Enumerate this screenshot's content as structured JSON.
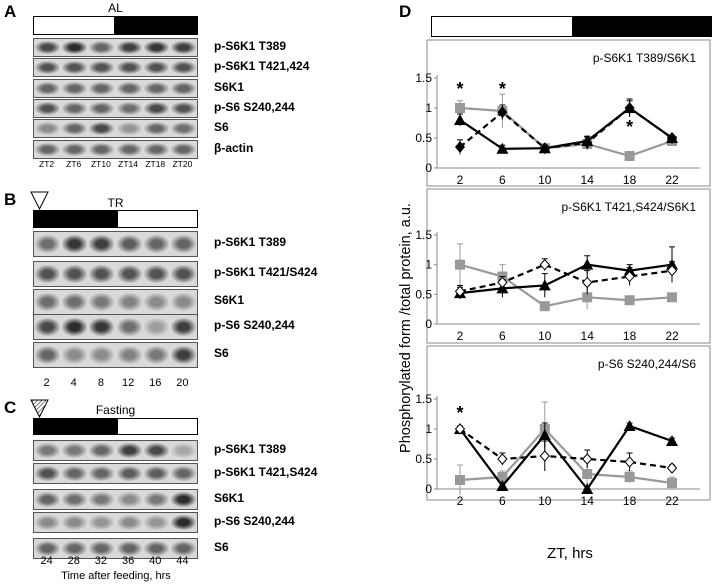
{
  "panels": {
    "A": {
      "letter": "A",
      "condition": "AL",
      "bar": {
        "segments": [
          "light",
          "dark"
        ]
      },
      "blots": [
        "p-S6K1  T389",
        "p-S6K1 T421,424",
        "S6K1",
        "p-S6 S240,244",
        "S6",
        "β-actin"
      ],
      "lane_labels": [
        "ZT2",
        "ZT6",
        "ZT10",
        "ZT14",
        "ZT18",
        "ZT20"
      ],
      "band_intensity": [
        [
          0.75,
          0.9,
          0.6,
          0.8,
          0.85,
          0.8
        ],
        [
          0.7,
          0.7,
          0.7,
          0.7,
          0.7,
          0.7
        ],
        [
          0.6,
          0.6,
          0.6,
          0.6,
          0.6,
          0.6
        ],
        [
          0.7,
          0.6,
          0.6,
          0.55,
          0.75,
          0.7
        ],
        [
          0.4,
          0.6,
          0.75,
          0.35,
          0.6,
          0.55
        ],
        [
          0.6,
          0.6,
          0.6,
          0.6,
          0.6,
          0.6
        ]
      ]
    },
    "B": {
      "letter": "B",
      "condition": "TR",
      "bar": {
        "segments": [
          "dark",
          "light"
        ]
      },
      "blots": [
        "p-S6K1  T389",
        "p-S6K1 T421/S424",
        "S6K1",
        "p-S6 S240,244",
        "S6"
      ],
      "lane_labels": [
        "2",
        "4",
        "8",
        "12",
        "16",
        "20"
      ],
      "band_intensity": [
        [
          0.55,
          0.85,
          0.8,
          0.65,
          0.6,
          0.6
        ],
        [
          0.7,
          0.7,
          0.7,
          0.7,
          0.7,
          0.7
        ],
        [
          0.55,
          0.55,
          0.5,
          0.45,
          0.4,
          0.4
        ],
        [
          0.75,
          0.9,
          0.85,
          0.55,
          0.3,
          0.8
        ],
        [
          0.6,
          0.4,
          0.4,
          0.45,
          0.5,
          0.8
        ]
      ]
    },
    "C": {
      "letter": "C",
      "condition": "Fasting",
      "bar": {
        "segments": [
          "dark",
          "light"
        ]
      },
      "blots": [
        "p-S6K1  T389",
        "p-S6K1 T421,S424",
        "S6K1",
        "p-S6 S240,244",
        "S6"
      ],
      "lane_labels": [
        "24",
        "28",
        "32",
        "36",
        "40",
        "44"
      ],
      "x_title": "Time after feeding, hrs",
      "band_intensity": [
        [
          0.5,
          0.5,
          0.6,
          0.8,
          0.75,
          0.25
        ],
        [
          0.7,
          0.6,
          0.6,
          0.65,
          0.65,
          0.6
        ],
        [
          0.6,
          0.55,
          0.5,
          0.4,
          0.5,
          0.9
        ],
        [
          0.4,
          0.4,
          0.35,
          0.4,
          0.35,
          0.9
        ],
        [
          0.6,
          0.6,
          0.6,
          0.6,
          0.6,
          0.6
        ]
      ]
    },
    "D": {
      "letter": "D",
      "y_title": "Phosphorylated form /total protein, a.u.",
      "x_title": "ZT, hrs"
    }
  },
  "chart_data": [
    {
      "type": "line",
      "title": "p-S6K1  T389/S6K1",
      "x": [
        2,
        6,
        10,
        14,
        18,
        22
      ],
      "xticks": [
        "2",
        "6",
        "10",
        "14",
        "18",
        "22"
      ],
      "ylim": [
        0,
        1.5
      ],
      "yticks": [
        "0",
        "0.5",
        "1",
        "1.5"
      ],
      "annotations": [
        {
          "text": "*",
          "x": 2,
          "y": 1.35
        },
        {
          "text": "*",
          "x": 6,
          "y": 1.35
        },
        {
          "text": "*",
          "x": 18,
          "y": 0.72
        }
      ],
      "series": [
        {
          "name": "AL",
          "marker": "diamond-filled",
          "dash": true,
          "color": "#000000",
          "values": [
            0.35,
            0.93,
            0.33,
            0.42,
            1.0,
            0.5
          ],
          "err": [
            0.12,
            0.12,
            0.05,
            0.1,
            0.12,
            0.05
          ]
        },
        {
          "name": "TR",
          "marker": "triangle-filled",
          "dash": false,
          "color": "#000000",
          "values": [
            0.8,
            0.32,
            0.33,
            0.45,
            1.0,
            0.5
          ],
          "err": [
            0.1,
            0.06,
            0.05,
            0.08,
            0.15,
            0.05
          ]
        },
        {
          "name": "Fasting",
          "marker": "square",
          "dash": false,
          "color": "#999999",
          "values": [
            1.0,
            0.95,
            0.33,
            0.4,
            0.2,
            0.45
          ],
          "err": [
            0.12,
            0.28,
            0.05,
            0.1,
            0.04,
            0.05
          ]
        }
      ]
    },
    {
      "type": "line",
      "title": "p-S6K1 T421,S424/S6K1",
      "x": [
        2,
        6,
        10,
        14,
        18,
        22
      ],
      "xticks": [
        "2",
        "6",
        "10",
        "14",
        "18",
        "22"
      ],
      "ylim": [
        0,
        1.5
      ],
      "yticks": [
        "0",
        "0.5",
        "1",
        "1.5"
      ],
      "annotations": [],
      "series": [
        {
          "name": "AL",
          "marker": "diamond-open",
          "dash": true,
          "color": "#000000",
          "values": [
            0.55,
            0.7,
            1.0,
            0.7,
            0.8,
            0.9
          ],
          "err": [
            0.1,
            0.1,
            0.1,
            0.2,
            0.15,
            0.15
          ]
        },
        {
          "name": "TR",
          "marker": "triangle-filled",
          "dash": false,
          "color": "#000000",
          "values": [
            0.52,
            0.6,
            0.65,
            1.0,
            0.9,
            1.0
          ],
          "err": [
            0.1,
            0.15,
            0.2,
            0.15,
            0.1,
            0.3
          ]
        },
        {
          "name": "Fasting",
          "marker": "square",
          "dash": false,
          "color": "#999999",
          "values": [
            1.0,
            0.8,
            0.3,
            0.45,
            0.4,
            0.45
          ],
          "err": [
            0.35,
            0.2,
            0.05,
            0.2,
            0.05,
            0.05
          ]
        }
      ]
    },
    {
      "type": "line",
      "title": "p-S6 S240,244/S6",
      "x": [
        2,
        6,
        10,
        14,
        18,
        22
      ],
      "xticks": [
        "2",
        "6",
        "10",
        "14",
        "18",
        "22"
      ],
      "ylim": [
        0,
        1.5
      ],
      "yticks": [
        "0",
        "0.5",
        "1",
        "1.5"
      ],
      "annotations": [
        {
          "text": "*",
          "x": 2,
          "y": 1.3
        }
      ],
      "series": [
        {
          "name": "AL",
          "marker": "diamond-open",
          "dash": true,
          "color": "#000000",
          "values": [
            1.0,
            0.5,
            0.55,
            0.5,
            0.45,
            0.35
          ],
          "err": [
            0.05,
            0.1,
            0.25,
            0.15,
            0.15,
            0.05
          ]
        },
        {
          "name": "TR",
          "marker": "triangle-filled",
          "dash": false,
          "color": "#000000",
          "values": [
            1.0,
            0.05,
            0.9,
            0.0,
            1.05,
            0.8
          ],
          "err": [
            0.05,
            0.05,
            0.2,
            0.05,
            0.05,
            0.05
          ]
        },
        {
          "name": "Fasting",
          "marker": "square",
          "dash": false,
          "color": "#999999",
          "values": [
            0.15,
            0.2,
            1.0,
            0.25,
            0.2,
            0.1
          ],
          "err": [
            0.25,
            0.1,
            0.45,
            0.2,
            0.1,
            0.1
          ]
        }
      ]
    }
  ]
}
